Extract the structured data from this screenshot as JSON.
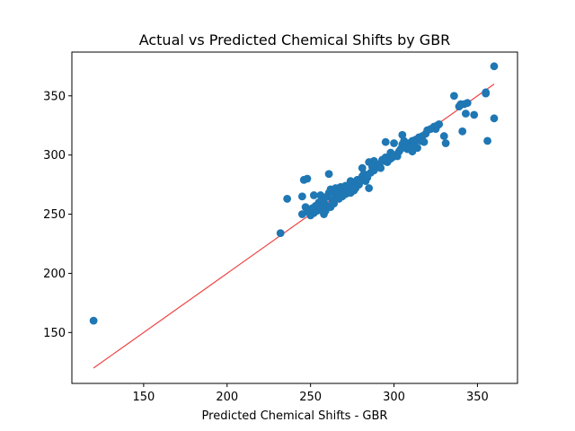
{
  "chart_data": {
    "type": "scatter",
    "title": "Actual vs Predicted Chemical Shifts by GBR",
    "xlabel": "Predicted Chemical Shifts - GBR",
    "ylabel": "",
    "xlim": [
      107,
      374
    ],
    "ylim": [
      107,
      387
    ],
    "xticks": [
      150,
      200,
      250,
      300,
      350
    ],
    "yticks": [
      150,
      200,
      250,
      300,
      350
    ],
    "grid": false,
    "colors": {
      "points": "#1f77b4",
      "fit_line": "#ee4444"
    },
    "fit_line": {
      "x": [
        120,
        360
      ],
      "y": [
        120,
        360
      ]
    },
    "points": [
      [
        120,
        160
      ],
      [
        232,
        234
      ],
      [
        236,
        263
      ],
      [
        245,
        250
      ],
      [
        245,
        265
      ],
      [
        246,
        279
      ],
      [
        248,
        280
      ],
      [
        247,
        256
      ],
      [
        248,
        252
      ],
      [
        250,
        249
      ],
      [
        251,
        255
      ],
      [
        252,
        251
      ],
      [
        252,
        266
      ],
      [
        253,
        257
      ],
      [
        254,
        253
      ],
      [
        255,
        260
      ],
      [
        256,
        254
      ],
      [
        256,
        266
      ],
      [
        257,
        258
      ],
      [
        258,
        262
      ],
      [
        258,
        250
      ],
      [
        259,
        253
      ],
      [
        260,
        265
      ],
      [
        260,
        257
      ],
      [
        261,
        284
      ],
      [
        261,
        268
      ],
      [
        262,
        256
      ],
      [
        262,
        271
      ],
      [
        263,
        262
      ],
      [
        264,
        268
      ],
      [
        264,
        259
      ],
      [
        265,
        272
      ],
      [
        266,
        264
      ],
      [
        266,
        270
      ],
      [
        267,
        263
      ],
      [
        268,
        268
      ],
      [
        268,
        273
      ],
      [
        269,
        265
      ],
      [
        270,
        270
      ],
      [
        271,
        267
      ],
      [
        271,
        274
      ],
      [
        272,
        270
      ],
      [
        273,
        272
      ],
      [
        274,
        268
      ],
      [
        274,
        278
      ],
      [
        275,
        273
      ],
      [
        276,
        270
      ],
      [
        277,
        276
      ],
      [
        277,
        272
      ],
      [
        278,
        279
      ],
      [
        279,
        275
      ],
      [
        280,
        278
      ],
      [
        281,
        282
      ],
      [
        281,
        289
      ],
      [
        282,
        284
      ],
      [
        283,
        278
      ],
      [
        284,
        281
      ],
      [
        285,
        294
      ],
      [
        285,
        272
      ],
      [
        286,
        285
      ],
      [
        287,
        290
      ],
      [
        288,
        287
      ],
      [
        288,
        295
      ],
      [
        289,
        293
      ],
      [
        290,
        291
      ],
      [
        291,
        292
      ],
      [
        292,
        289
      ],
      [
        293,
        296
      ],
      [
        294,
        295
      ],
      [
        295,
        311
      ],
      [
        295,
        298
      ],
      [
        296,
        294
      ],
      [
        297,
        296
      ],
      [
        298,
        297
      ],
      [
        298,
        302
      ],
      [
        299,
        298
      ],
      [
        300,
        300
      ],
      [
        300,
        310
      ],
      [
        302,
        299
      ],
      [
        303,
        303
      ],
      [
        304,
        305
      ],
      [
        305,
        317
      ],
      [
        305,
        309
      ],
      [
        306,
        312
      ],
      [
        307,
        307
      ],
      [
        308,
        305
      ],
      [
        309,
        310
      ],
      [
        310,
        308
      ],
      [
        311,
        303
      ],
      [
        311,
        312
      ],
      [
        312,
        310
      ],
      [
        313,
        313
      ],
      [
        314,
        306
      ],
      [
        315,
        315
      ],
      [
        316,
        312
      ],
      [
        317,
        316
      ],
      [
        318,
        311
      ],
      [
        319,
        318
      ],
      [
        320,
        321
      ],
      [
        322,
        322
      ],
      [
        324,
        324
      ],
      [
        325,
        322
      ],
      [
        326,
        325
      ],
      [
        327,
        326
      ],
      [
        330,
        316
      ],
      [
        331,
        310
      ],
      [
        336,
        350
      ],
      [
        339,
        341
      ],
      [
        340,
        343
      ],
      [
        341,
        320
      ],
      [
        342,
        343
      ],
      [
        343,
        335
      ],
      [
        344,
        344
      ],
      [
        348,
        334
      ],
      [
        355,
        352
      ],
      [
        355,
        353
      ],
      [
        356,
        312
      ],
      [
        360,
        375
      ],
      [
        360,
        331
      ]
    ]
  }
}
